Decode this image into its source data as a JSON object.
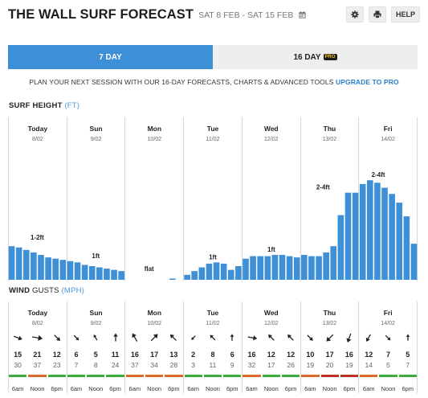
{
  "header": {
    "title": "THE WALL SURF FORECAST",
    "dates": "SAT 8 FEB - SAT 15 FEB",
    "help_label": "HELP"
  },
  "tabs": [
    {
      "label": "7 DAY",
      "active": true
    },
    {
      "label": "16 DAY",
      "badge": "PRO",
      "active": false
    }
  ],
  "promo": {
    "text": "PLAN YOUR NEXT SESSION WITH OUR 16-DAY FORECASTS, CHARTS & ADVANCED TOOLS",
    "link": "UPGRADE TO PRO"
  },
  "surf_section": {
    "title": "SURF HEIGHT",
    "unit": "(FT)"
  },
  "wind_section": {
    "title": "WIND",
    "title2": "GUSTS",
    "unit": "(MPH)"
  },
  "days": [
    {
      "name": "Today",
      "date": "8/02"
    },
    {
      "name": "Sun",
      "date": "9/02"
    },
    {
      "name": "Mon",
      "date": "10/02"
    },
    {
      "name": "Tue",
      "date": "11/02"
    },
    {
      "name": "Wed",
      "date": "12/02"
    },
    {
      "name": "Thu",
      "date": "13/02"
    },
    {
      "name": "Fri",
      "date": "14/02"
    }
  ],
  "chart_data": {
    "type": "bar",
    "title": "SURF HEIGHT (FT)",
    "unit": "ft",
    "bar_color": "#3d8fd8",
    "day_labels": [
      "1-2ft",
      "1ft",
      "flat",
      "1ft",
      "1ft",
      "2-4ft",
      "2-4ft"
    ],
    "values": [
      [
        1.35,
        1.3,
        1.2,
        1.1,
        1.0,
        0.9,
        0.85,
        0.8
      ],
      [
        0.75,
        0.7,
        0.6,
        0.55,
        0.5,
        0.45,
        0.4,
        0.35
      ],
      [
        0,
        0,
        0,
        0,
        0,
        0,
        0.05,
        0
      ],
      [
        0.2,
        0.35,
        0.5,
        0.65,
        0.7,
        0.65,
        0.4,
        0.55
      ],
      [
        0.85,
        0.95,
        0.95,
        0.95,
        1.0,
        1.0,
        0.95,
        0.9
      ],
      [
        1.0,
        0.95,
        0.95,
        1.1,
        1.35,
        2.6,
        3.5,
        3.5
      ],
      [
        3.85,
        4.0,
        3.9,
        3.7,
        3.45,
        3.1,
        2.55,
        1.45
      ]
    ],
    "ylim": [
      0,
      4.2
    ]
  },
  "wind": {
    "times": [
      "6am",
      "Noon",
      "6pm"
    ],
    "colors": {
      "green": "#3caa3c",
      "orange": "#d9682a",
      "red": "#c0302a"
    },
    "cells": [
      {
        "dir": 110,
        "speed": "15",
        "gust": "30",
        "bar": "green"
      },
      {
        "dir": 100,
        "speed": "21",
        "gust": "37",
        "bar": "orange"
      },
      {
        "dir": 135,
        "speed": "12",
        "gust": "23",
        "bar": "green"
      },
      {
        "dir": 135,
        "speed": "6",
        "gust": "7",
        "bar": "green"
      },
      {
        "dir": 330,
        "speed": "5",
        "gust": "8",
        "bar": "green"
      },
      {
        "dir": 0,
        "speed": "11",
        "gust": "24",
        "bar": "green"
      },
      {
        "dir": 330,
        "speed": "16",
        "gust": "37",
        "bar": "orange"
      },
      {
        "dir": 45,
        "speed": "17",
        "gust": "34",
        "bar": "orange"
      },
      {
        "dir": 315,
        "speed": "13",
        "gust": "28",
        "bar": "orange"
      },
      {
        "dir": 225,
        "speed": "2",
        "gust": "3",
        "bar": "green"
      },
      {
        "dir": 315,
        "speed": "8",
        "gust": "11",
        "bar": "green"
      },
      {
        "dir": 0,
        "speed": "6",
        "gust": "9",
        "bar": "green"
      },
      {
        "dir": 100,
        "speed": "16",
        "gust": "32",
        "bar": "orange"
      },
      {
        "dir": 315,
        "speed": "12",
        "gust": "17",
        "bar": "green"
      },
      {
        "dir": 315,
        "speed": "12",
        "gust": "26",
        "bar": "green"
      },
      {
        "dir": 135,
        "speed": "10",
        "gust": "19",
        "bar": "orange"
      },
      {
        "dir": 225,
        "speed": "17",
        "gust": "20",
        "bar": "red"
      },
      {
        "dir": 200,
        "speed": "16",
        "gust": "19",
        "bar": "red"
      },
      {
        "dir": 210,
        "speed": "12",
        "gust": "14",
        "bar": "orange"
      },
      {
        "dir": 135,
        "speed": "7",
        "gust": "5",
        "bar": "green"
      },
      {
        "dir": 0,
        "speed": "5",
        "gust": "7",
        "bar": "green"
      }
    ]
  }
}
